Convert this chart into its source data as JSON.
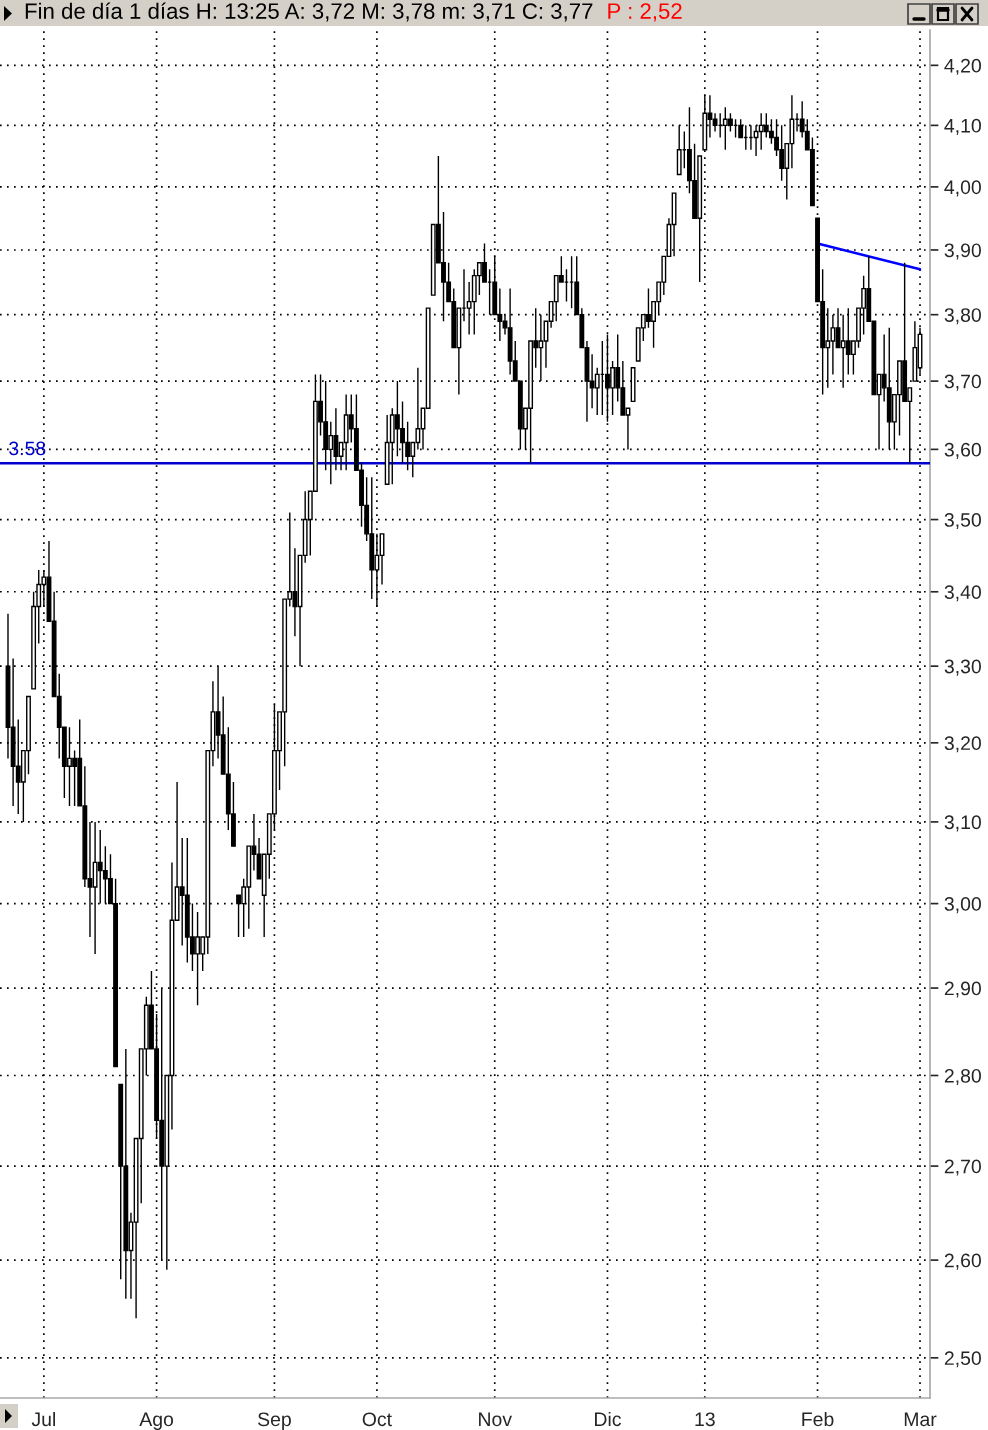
{
  "chart_data": {
    "type": "candlestick",
    "title": "Fin de día 1 días H: 13:25 A: 3,72 M: 3,78 m: 3,71 C: 3,77",
    "subtitle": "P : 2,52",
    "categories": [
      null,
      null,
      null,
      null,
      null,
      null,
      null,
      "Jul",
      null,
      null,
      null,
      null,
      null,
      null,
      null,
      null,
      null,
      null,
      null,
      null,
      null,
      null,
      null,
      null,
      null,
      null,
      null,
      null,
      null,
      "Ago",
      null,
      null,
      null,
      null,
      null,
      null,
      null,
      null,
      null,
      null,
      null,
      null,
      null,
      null,
      null,
      null,
      null,
      null,
      null,
      null,
      null,
      null,
      "Sep",
      null,
      null,
      null,
      null,
      null,
      null,
      null,
      null,
      null,
      null,
      null,
      null,
      null,
      null,
      null,
      null,
      null,
      null,
      null,
      "Oct",
      null,
      null,
      null,
      null,
      null,
      null,
      null,
      null,
      null,
      null,
      null,
      null,
      null,
      null,
      null,
      null,
      null,
      null,
      null,
      null,
      null,
      null,
      "Nov",
      null,
      null,
      null,
      null,
      null,
      null,
      null,
      null,
      null,
      null,
      null,
      null,
      null,
      null,
      null,
      null,
      null,
      null,
      null,
      null,
      null,
      "Dic",
      null,
      null,
      null,
      null,
      null,
      null,
      null,
      null,
      null,
      null,
      null,
      null,
      null,
      null,
      null,
      null,
      null,
      null,
      "13",
      null,
      null,
      null,
      null,
      null,
      null,
      null,
      null,
      null,
      null,
      null,
      null,
      null,
      null,
      null,
      null,
      null,
      null,
      null,
      null,
      null,
      "Feb",
      null,
      null,
      null,
      null,
      null,
      null,
      null,
      null,
      null,
      null,
      null,
      null,
      null,
      null,
      null,
      null,
      null,
      null,
      null,
      "Mar"
    ],
    "series": [
      {
        "type": "candlestick",
        "color": "#000000",
        "ohlc": [
          [
            3.3,
            3.37,
            3.18,
            3.22
          ],
          [
            3.22,
            3.31,
            3.12,
            3.17
          ],
          [
            3.17,
            3.23,
            3.11,
            3.15
          ],
          [
            3.15,
            3.19,
            3.1,
            3.19
          ],
          [
            3.19,
            3.26,
            3.16,
            3.26
          ],
          [
            3.27,
            3.4,
            3.27,
            3.38
          ],
          [
            3.38,
            3.43,
            3.33,
            3.41
          ],
          [
            3.41,
            3.43,
            3.38,
            3.42
          ],
          [
            3.42,
            3.47,
            3.36,
            3.36
          ],
          [
            3.36,
            3.4,
            3.26,
            3.26
          ],
          [
            3.26,
            3.29,
            3.18,
            3.22
          ],
          [
            3.22,
            3.22,
            3.13,
            3.17
          ],
          [
            3.17,
            3.22,
            3.12,
            3.18
          ],
          [
            3.18,
            3.19,
            3.12,
            3.17
          ],
          [
            3.18,
            3.23,
            3.12,
            3.12
          ],
          [
            3.12,
            3.17,
            3.02,
            3.03
          ],
          [
            3.03,
            3.1,
            2.96,
            3.02
          ],
          [
            3.02,
            3.1,
            2.94,
            3.05
          ],
          [
            3.05,
            3.09,
            3.0,
            3.04
          ],
          [
            3.04,
            3.07,
            3.0,
            3.03
          ],
          [
            3.03,
            3.06,
            3.0,
            3.0
          ],
          [
            3.0,
            3.03,
            2.81,
            2.81
          ],
          [
            2.79,
            2.79,
            2.58,
            2.7
          ],
          [
            2.7,
            2.83,
            2.56,
            2.61
          ],
          [
            2.61,
            2.65,
            2.56,
            2.64
          ],
          [
            2.64,
            2.73,
            2.54,
            2.73
          ],
          [
            2.73,
            2.83,
            2.66,
            2.83
          ],
          [
            2.83,
            2.89,
            2.8,
            2.88
          ],
          [
            2.88,
            2.92,
            2.83,
            2.83
          ],
          [
            2.83,
            2.87,
            2.73,
            2.75
          ],
          [
            2.75,
            2.9,
            2.6,
            2.7
          ],
          [
            2.7,
            2.8,
            2.59,
            2.8
          ],
          [
            2.8,
            3.05,
            2.74,
            2.98
          ],
          [
            2.98,
            3.15,
            2.98,
            3.02
          ],
          [
            3.02,
            3.08,
            2.95,
            3.01
          ],
          [
            3.01,
            3.08,
            2.93,
            2.96
          ],
          [
            2.96,
            3.0,
            2.92,
            2.94
          ],
          [
            2.94,
            2.99,
            2.88,
            2.96
          ],
          [
            2.94,
            2.96,
            2.92,
            2.96
          ],
          [
            2.96,
            3.19,
            2.94,
            3.19
          ],
          [
            3.19,
            3.28,
            3.17,
            3.24
          ],
          [
            3.24,
            3.3,
            3.18,
            3.21
          ],
          [
            3.21,
            3.26,
            3.16,
            3.16
          ],
          [
            3.16,
            3.22,
            3.09,
            3.11
          ],
          [
            3.11,
            3.15,
            3.07,
            3.07
          ],
          [
            3.01,
            3.01,
            2.96,
            3.0
          ],
          [
            3.0,
            3.03,
            2.96,
            3.02
          ],
          [
            3.02,
            3.07,
            2.97,
            3.07
          ],
          [
            3.07,
            3.11,
            3.04,
            3.06
          ],
          [
            3.06,
            3.08,
            3.03,
            3.03
          ],
          [
            3.01,
            3.06,
            2.96,
            3.06
          ],
          [
            3.06,
            3.11,
            3.03,
            3.11
          ],
          [
            3.11,
            3.25,
            3.09,
            3.19
          ],
          [
            3.19,
            3.24,
            3.14,
            3.24
          ],
          [
            3.24,
            3.39,
            3.17,
            3.39
          ],
          [
            3.39,
            3.51,
            3.38,
            3.4
          ],
          [
            3.4,
            3.46,
            3.34,
            3.38
          ],
          [
            3.38,
            3.45,
            3.3,
            3.45
          ],
          [
            3.45,
            3.54,
            3.44,
            3.5
          ],
          [
            3.5,
            3.54,
            3.45,
            3.54
          ],
          [
            3.54,
            3.71,
            3.54,
            3.67
          ],
          [
            3.67,
            3.71,
            3.62,
            3.64
          ],
          [
            3.64,
            3.7,
            3.57,
            3.6
          ],
          [
            3.6,
            3.64,
            3.55,
            3.62
          ],
          [
            3.62,
            3.66,
            3.57,
            3.59
          ],
          [
            3.59,
            3.61,
            3.57,
            3.61
          ],
          [
            3.61,
            3.68,
            3.57,
            3.65
          ],
          [
            3.65,
            3.68,
            3.61,
            3.63
          ],
          [
            3.63,
            3.68,
            3.57,
            3.57
          ],
          [
            3.57,
            3.58,
            3.49,
            3.52
          ],
          [
            3.52,
            3.56,
            3.47,
            3.48
          ],
          [
            3.48,
            3.56,
            3.39,
            3.43
          ],
          [
            3.43,
            3.48,
            3.38,
            3.45
          ],
          [
            3.45,
            3.48,
            3.41,
            3.48
          ],
          [
            3.55,
            3.65,
            3.55,
            3.61
          ],
          [
            3.61,
            3.66,
            3.55,
            3.65
          ],
          [
            3.65,
            3.7,
            3.59,
            3.63
          ],
          [
            3.63,
            3.67,
            3.58,
            3.61
          ],
          [
            3.61,
            3.64,
            3.57,
            3.59
          ],
          [
            3.59,
            3.61,
            3.56,
            3.61
          ],
          [
            3.61,
            3.72,
            3.6,
            3.63
          ],
          [
            3.63,
            3.66,
            3.6,
            3.66
          ],
          [
            3.66,
            3.81,
            3.66,
            3.81
          ],
          [
            3.83,
            3.94,
            3.83,
            3.94
          ],
          [
            3.94,
            4.05,
            3.88,
            3.88
          ],
          [
            3.88,
            3.96,
            3.79,
            3.85
          ],
          [
            3.85,
            3.88,
            3.82,
            3.82
          ],
          [
            3.82,
            3.84,
            3.75,
            3.75
          ],
          [
            3.75,
            3.81,
            3.68,
            3.81
          ],
          [
            3.81,
            3.87,
            3.79,
            3.81
          ],
          [
            3.81,
            3.85,
            3.77,
            3.82
          ],
          [
            3.82,
            3.87,
            3.77,
            3.86
          ],
          [
            3.86,
            3.88,
            3.83,
            3.88
          ],
          [
            3.88,
            3.91,
            3.85,
            3.85
          ],
          [
            3.85,
            3.87,
            3.8,
            3.85
          ],
          [
            3.85,
            3.89,
            3.8,
            3.8
          ],
          [
            3.8,
            3.84,
            3.76,
            3.79
          ],
          [
            3.79,
            3.8,
            3.77,
            3.78
          ],
          [
            3.78,
            3.84,
            3.71,
            3.73
          ],
          [
            3.73,
            3.76,
            3.7,
            3.7
          ],
          [
            3.7,
            3.7,
            3.6,
            3.63
          ],
          [
            3.63,
            3.66,
            3.6,
            3.66
          ],
          [
            3.66,
            3.76,
            3.58,
            3.76
          ],
          [
            3.76,
            3.81,
            3.72,
            3.75
          ],
          [
            3.75,
            3.8,
            3.7,
            3.76
          ],
          [
            3.76,
            3.79,
            3.72,
            3.79
          ],
          [
            3.79,
            3.82,
            3.78,
            3.82
          ],
          [
            3.82,
            3.86,
            3.79,
            3.86
          ],
          [
            3.86,
            3.89,
            3.85,
            3.85
          ],
          [
            3.85,
            3.87,
            3.82,
            3.85
          ],
          [
            3.85,
            3.89,
            3.81,
            3.85
          ],
          [
            3.85,
            3.89,
            3.8,
            3.8
          ],
          [
            3.8,
            3.81,
            3.75,
            3.75
          ],
          [
            3.75,
            3.76,
            3.64,
            3.7
          ],
          [
            3.7,
            3.74,
            3.66,
            3.69
          ],
          [
            3.69,
            3.72,
            3.65,
            3.71
          ],
          [
            3.71,
            3.76,
            3.65,
            3.71
          ],
          [
            3.71,
            3.77,
            3.64,
            3.69
          ],
          [
            3.69,
            3.73,
            3.65,
            3.72
          ],
          [
            3.72,
            3.77,
            3.67,
            3.69
          ],
          [
            3.69,
            3.73,
            3.65,
            3.65
          ],
          [
            3.65,
            3.66,
            3.6,
            3.66
          ],
          [
            3.67,
            3.72,
            3.67,
            3.72
          ],
          [
            3.73,
            3.78,
            3.73,
            3.78
          ],
          [
            3.78,
            3.8,
            3.76,
            3.8
          ],
          [
            3.8,
            3.84,
            3.78,
            3.79
          ],
          [
            3.79,
            3.82,
            3.75,
            3.82
          ],
          [
            3.82,
            3.85,
            3.8,
            3.85
          ],
          [
            3.85,
            3.89,
            3.83,
            3.89
          ],
          [
            3.89,
            3.95,
            3.89,
            3.94
          ],
          [
            3.94,
            3.99,
            3.89,
            3.99
          ],
          [
            4.02,
            4.1,
            4.02,
            4.06
          ],
          [
            4.06,
            4.09,
            4.03,
            4.06
          ],
          [
            4.06,
            4.13,
            3.99,
            4.01
          ],
          [
            4.01,
            4.07,
            3.95,
            3.95
          ],
          [
            3.95,
            4.05,
            3.85,
            4.05
          ],
          [
            4.06,
            4.15,
            4.06,
            4.12
          ],
          [
            4.12,
            4.15,
            4.08,
            4.11
          ],
          [
            4.11,
            4.12,
            4.09,
            4.1
          ],
          [
            4.1,
            4.12,
            4.08,
            4.1
          ],
          [
            4.1,
            4.13,
            4.06,
            4.11
          ],
          [
            4.11,
            4.12,
            4.09,
            4.1
          ],
          [
            4.1,
            4.11,
            4.08,
            4.1
          ],
          [
            4.1,
            4.11,
            4.08,
            4.08
          ],
          [
            4.08,
            4.1,
            4.06,
            4.08
          ],
          [
            4.08,
            4.1,
            4.06,
            4.08
          ],
          [
            4.08,
            4.1,
            4.05,
            4.09
          ],
          [
            4.09,
            4.12,
            4.06,
            4.1
          ],
          [
            4.1,
            4.12,
            4.08,
            4.09
          ],
          [
            4.09,
            4.11,
            4.07,
            4.08
          ],
          [
            4.08,
            4.11,
            4.05,
            4.06
          ],
          [
            4.06,
            4.1,
            4.01,
            4.03
          ],
          [
            4.03,
            4.07,
            3.98,
            4.07
          ],
          [
            4.07,
            4.15,
            4.03,
            4.11
          ],
          [
            4.11,
            4.12,
            4.09,
            4.11
          ],
          [
            4.11,
            4.14,
            4.08,
            4.09
          ],
          [
            4.09,
            4.11,
            4.06,
            4.06
          ],
          [
            4.06,
            4.08,
            3.97,
            3.97
          ],
          [
            3.95,
            3.95,
            3.82,
            3.82
          ],
          [
            3.82,
            3.87,
            3.68,
            3.75
          ],
          [
            3.75,
            3.81,
            3.69,
            3.76
          ],
          [
            3.76,
            3.8,
            3.71,
            3.78
          ],
          [
            3.78,
            3.81,
            3.75,
            3.75
          ],
          [
            3.75,
            3.8,
            3.69,
            3.76
          ],
          [
            3.76,
            3.81,
            3.71,
            3.74
          ],
          [
            3.74,
            3.76,
            3.71,
            3.76
          ],
          [
            3.76,
            3.81,
            3.75,
            3.81
          ],
          [
            3.81,
            3.86,
            3.77,
            3.84
          ],
          [
            3.84,
            3.89,
            3.79,
            3.79
          ],
          [
            3.79,
            3.79,
            3.68,
            3.68
          ],
          [
            3.68,
            3.71,
            3.6,
            3.71
          ],
          [
            3.71,
            3.77,
            3.67,
            3.69
          ],
          [
            3.69,
            3.78,
            3.6,
            3.64
          ],
          [
            3.64,
            3.68,
            3.6,
            3.68
          ],
          [
            3.68,
            3.73,
            3.62,
            3.73
          ],
          [
            3.73,
            3.88,
            3.67,
            3.67
          ],
          [
            3.67,
            3.69,
            3.58,
            3.69
          ],
          [
            3.7,
            3.79,
            3.7,
            3.75
          ],
          [
            3.72,
            3.78,
            3.71,
            3.77
          ]
        ]
      },
      {
        "type": "line",
        "x": [
          "Feb",
          "Mar"
        ],
        "values": [
          3.91,
          3.87
        ],
        "color": "#0000ff"
      }
    ],
    "log": "y",
    "ylim": [
      2.46,
      4.26
    ],
    "yticks": [
      {
        "value": 2.5,
        "label": "2,50"
      },
      {
        "value": 2.6,
        "label": "2,60"
      },
      {
        "value": 2.7,
        "label": "2,70"
      },
      {
        "value": 2.8,
        "label": "2,80"
      },
      {
        "value": 2.9,
        "label": "2,90"
      },
      {
        "value": 3.0,
        "label": "3,00"
      },
      {
        "value": 3.1,
        "label": "3,10"
      },
      {
        "value": 3.2,
        "label": "3,20"
      },
      {
        "value": 3.3,
        "label": "3,30"
      },
      {
        "value": 3.4,
        "label": "3,40"
      },
      {
        "value": 3.5,
        "label": "3,50"
      },
      {
        "value": 3.6,
        "label": "3,60"
      },
      {
        "value": 3.7,
        "label": "3,70"
      },
      {
        "value": 3.8,
        "label": "3,80"
      },
      {
        "value": 3.9,
        "label": "3,90"
      },
      {
        "value": 4.0,
        "label": "4,00"
      },
      {
        "value": 4.1,
        "label": "4,10"
      },
      {
        "value": 4.2,
        "label": "4,20"
      }
    ],
    "ref_lines": [
      {
        "axis": "y",
        "value": 3.58,
        "label": "3.58",
        "color": "#0000cc"
      }
    ],
    "grid": true
  }
}
